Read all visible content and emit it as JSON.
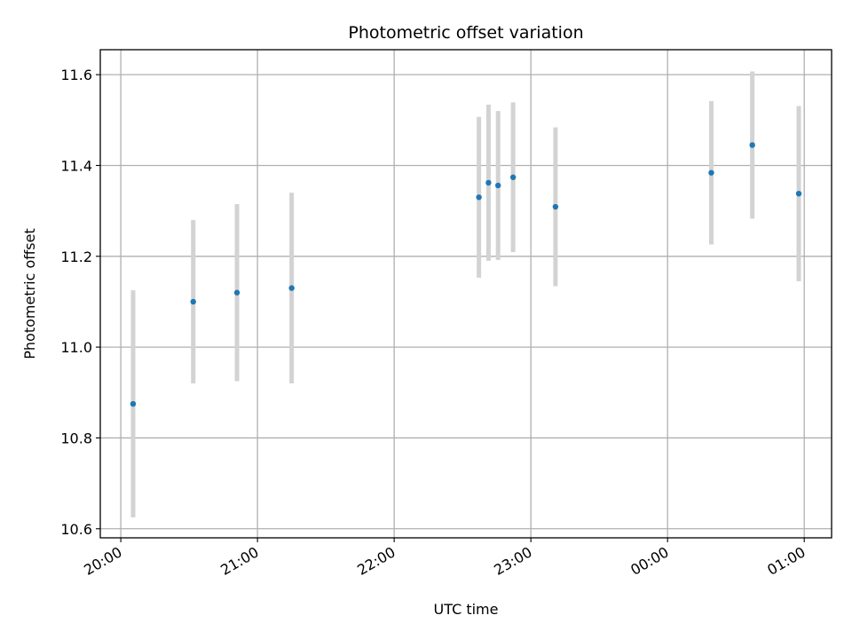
{
  "chart_data": {
    "type": "scatter",
    "title": "Photometric offset variation",
    "xlabel": "UTC time",
    "ylabel": "Photometric offset",
    "x_tick_labels": [
      "20:00",
      "21:00",
      "22:00",
      "23:00",
      "00:00",
      "01:00"
    ],
    "y_tick_labels": [
      "10.6",
      "10.8",
      "11.0",
      "11.2",
      "11.4",
      "11.6"
    ],
    "y_ticks": [
      10.6,
      10.8,
      11.0,
      11.2,
      11.4,
      11.6
    ],
    "ylim": [
      10.58,
      11.655
    ],
    "x_hours_ticks": [
      20,
      21,
      22,
      23,
      24,
      25
    ],
    "xlim_hours": [
      19.85,
      25.2
    ],
    "grid": true,
    "point_color": "#1f77b4",
    "errorbar_color": "#d3d3d3",
    "points": [
      {
        "time": "20:05",
        "t": 20.09,
        "y": 10.875,
        "yerr": 0.25
      },
      {
        "time": "20:32",
        "t": 20.53,
        "y": 11.1,
        "yerr": 0.18
      },
      {
        "time": "20:51",
        "t": 20.85,
        "y": 11.12,
        "yerr": 0.195
      },
      {
        "time": "21:15",
        "t": 21.25,
        "y": 11.13,
        "yerr": 0.21
      },
      {
        "time": "22:37",
        "t": 22.62,
        "y": 11.33,
        "yerr": 0.177
      },
      {
        "time": "22:41",
        "t": 22.69,
        "y": 11.362,
        "yerr": 0.172
      },
      {
        "time": "22:46",
        "t": 22.76,
        "y": 11.356,
        "yerr": 0.164
      },
      {
        "time": "22:52",
        "t": 22.87,
        "y": 11.374,
        "yerr": 0.165
      },
      {
        "time": "23:11",
        "t": 23.18,
        "y": 11.309,
        "yerr": 0.175
      },
      {
        "time": "00:19",
        "t": 24.32,
        "y": 11.384,
        "yerr": 0.158
      },
      {
        "time": "00:37",
        "t": 24.62,
        "y": 11.445,
        "yerr": 0.162
      },
      {
        "time": "00:57",
        "t": 24.96,
        "y": 11.338,
        "yerr": 0.193
      }
    ]
  }
}
